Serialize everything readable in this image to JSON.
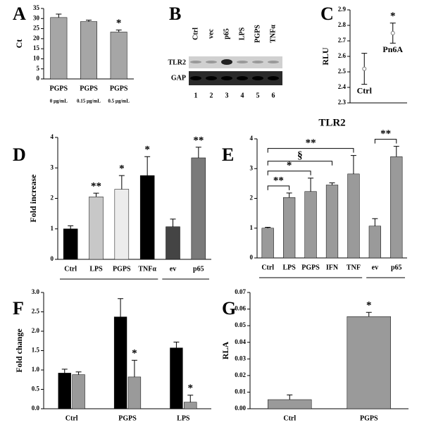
{
  "chart_data": [
    {
      "panel": "A",
      "type": "bar",
      "ylabel": "Ct",
      "categories": [
        "PGPS",
        "PGPS",
        "PGPS"
      ],
      "sublabels": [
        "0 µg/mL",
        "0.15 µg/mL",
        "0.5 µg/mL"
      ],
      "values": [
        30.5,
        28.5,
        23.3
      ],
      "errors": [
        1.7,
        0.7,
        1.0
      ],
      "stars": [
        null,
        null,
        "*"
      ],
      "color": "#a6a6a6",
      "ylim": [
        0,
        35
      ],
      "yticks": [
        0,
        5,
        10,
        15,
        20,
        25,
        30,
        35
      ]
    },
    {
      "panel": "C",
      "type": "scatter",
      "ylabel": "RLU",
      "categories": [
        "Ctrl",
        "Pn6A"
      ],
      "values": [
        2.52,
        2.75
      ],
      "errors": [
        0.1,
        0.065
      ],
      "stars": [
        null,
        "*"
      ],
      "color": "#777777",
      "ylim": [
        2.3,
        2.9
      ],
      "yticks": [
        2.3,
        2.4,
        2.5,
        2.6,
        2.7,
        2.8,
        2.9
      ]
    },
    {
      "panel": "D",
      "type": "bar",
      "ylabel": "Fold increase",
      "categories": [
        "Ctrl",
        "LPS",
        "PGPS",
        "TNFα",
        "ev",
        "p65"
      ],
      "values": [
        1.0,
        2.05,
        2.3,
        2.75,
        1.07,
        3.33
      ],
      "errors": [
        0.1,
        0.12,
        0.45,
        0.62,
        0.25,
        0.35
      ],
      "stars": [
        null,
        "**",
        "*",
        "*",
        null,
        "**"
      ],
      "colors": [
        "#000000",
        "#c8c8c8",
        "#ececec",
        "#000000",
        "#444444",
        "#7a7a7a"
      ],
      "ylim": [
        0,
        4
      ],
      "yticks": [
        0,
        1,
        2,
        3,
        4
      ]
    },
    {
      "panel": "E",
      "type": "bar",
      "title": "TLR2",
      "categories": [
        "Ctrl",
        "LPS",
        "PGPS",
        "IFN",
        "TNF",
        "ev",
        "p65"
      ],
      "values": [
        1.0,
        2.03,
        2.23,
        2.45,
        2.82,
        1.07,
        3.4
      ],
      "errors": [
        0.03,
        0.15,
        0.45,
        0.07,
        0.62,
        0.25,
        0.35
      ],
      "color": "#9a9a9a",
      "ylim": [
        0,
        4
      ],
      "yticks": [
        0,
        1,
        2,
        3,
        4
      ],
      "brackets": [
        {
          "from": "Ctrl",
          "to": "LPS",
          "label": "**"
        },
        {
          "from": "Ctrl",
          "to": "PGPS",
          "label": "*"
        },
        {
          "from": "Ctrl",
          "to": "IFN",
          "label": "§"
        },
        {
          "from": "Ctrl",
          "to": "TNF",
          "label": "**"
        },
        {
          "from": "ev",
          "to": "p65",
          "label": "**"
        }
      ]
    },
    {
      "panel": "F",
      "type": "bar",
      "ylabel": "Fold change",
      "categories": [
        "Ctrl",
        "PGPS",
        "LPS"
      ],
      "series": [
        {
          "color": "#000000",
          "values": [
            0.92,
            2.37,
            1.57
          ],
          "errors": [
            0.1,
            0.47,
            0.15
          ],
          "stars": [
            null,
            null,
            null
          ]
        },
        {
          "color": "#9a9a9a",
          "values": [
            0.88,
            0.82,
            0.17
          ],
          "errors": [
            0.07,
            0.43,
            0.18
          ],
          "stars": [
            null,
            "*",
            "*"
          ]
        }
      ],
      "ylim": [
        0,
        3.0
      ],
      "yticks": [
        {
          "value": 0,
          "label": "0.0"
        },
        {
          "value": 0.5,
          "label": "0.5"
        },
        {
          "value": 1,
          "label": "1.0"
        },
        {
          "value": 1.5,
          "label": "1.5"
        },
        {
          "value": 2,
          "label": "2.0"
        },
        {
          "value": 2.5,
          "label": "2.5"
        },
        {
          "value": 3,
          "label": "3.0"
        }
      ]
    },
    {
      "panel": "G",
      "type": "bar",
      "ylabel": "RLA",
      "categories": [
        "Ctrl",
        "PGPS"
      ],
      "values": [
        0.0055,
        0.0555
      ],
      "errors": [
        0.0028,
        0.0025
      ],
      "stars": [
        null,
        "*"
      ],
      "color": "#9a9a9a",
      "ylim": [
        0,
        0.07
      ],
      "yticks": [
        {
          "value": 0,
          "label": "0.00"
        },
        {
          "value": 0.01,
          "label": "0.01"
        },
        {
          "value": 0.02,
          "label": "0.02"
        },
        {
          "value": 0.03,
          "label": "0.03"
        },
        {
          "value": 0.04,
          "label": "0.04"
        },
        {
          "value": 0.05,
          "label": "0.05"
        },
        {
          "value": 0.06,
          "label": "0.06"
        },
        {
          "value": 0.07,
          "label": "0.07"
        }
      ]
    }
  ],
  "blot": {
    "panel": "B",
    "lanes": [
      "Ctrl",
      "vec",
      "p65",
      "LPS",
      "PGPS",
      "TNFα"
    ],
    "rows": [
      "TLR2",
      "GAP"
    ],
    "lane_numbers": [
      1,
      2,
      3,
      4,
      5,
      6
    ]
  }
}
